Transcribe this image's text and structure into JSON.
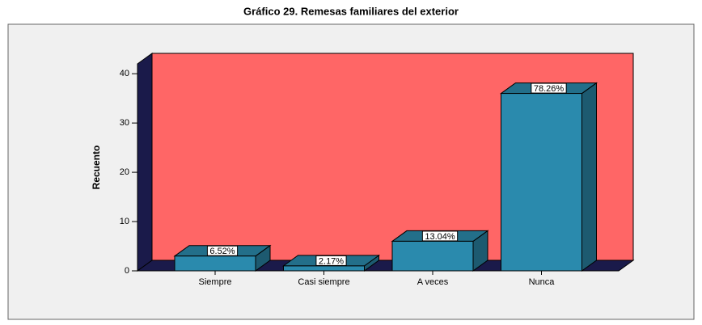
{
  "chart_data": {
    "type": "bar3d",
    "title": "Gráfico 29. Remesas familiares del exterior",
    "y_label": "Recuento",
    "categories": [
      "Siempre",
      "Casi siempre",
      "A veces",
      "Nunca"
    ],
    "values": [
      3,
      1,
      6,
      36
    ],
    "percent_labels": [
      "6.52%",
      "2.17%",
      "13.04%",
      "78.26%"
    ],
    "color": "#2a8aad",
    "wall_color": "#ff6666",
    "ylim": [
      0,
      42
    ],
    "yticks": [
      0,
      10,
      20,
      30,
      40
    ]
  }
}
